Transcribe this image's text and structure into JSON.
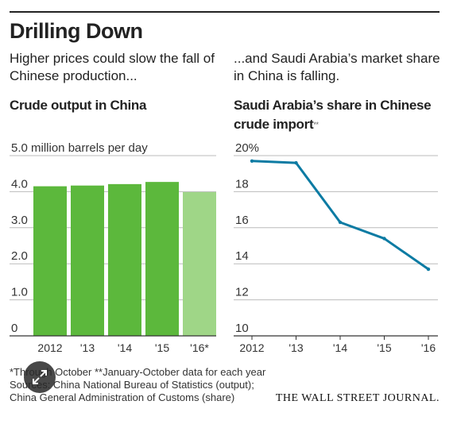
{
  "header": {
    "title": "Drilling Down",
    "subtitle_left": "Higher prices could slow the fall of Chinese production...",
    "subtitle_right": "...and Saudi Arabia’s market share in China is falling."
  },
  "chart_data": [
    {
      "type": "bar",
      "title": "Crude output in China",
      "ylabel": "million barrels per day",
      "categories": [
        "2012",
        "'13",
        "'14",
        "'15",
        "'16*"
      ],
      "values": [
        4.15,
        4.17,
        4.21,
        4.27,
        3.99
      ],
      "ylim": [
        0,
        5.0
      ],
      "yticks": [
        0,
        1.0,
        2.0,
        3.0,
        4.0,
        5.0
      ],
      "ytick_labels": [
        "0",
        "1.0",
        "2.0",
        "3.0",
        "4.0",
        "5.0 million barrels per day"
      ],
      "grid": true,
      "colors": [
        "#5cb83c",
        "#5cb83c",
        "#5cb83c",
        "#5cb83c",
        "#9fd687"
      ]
    },
    {
      "type": "line",
      "title": "Saudi Arabia’s share in Chinese crude import",
      "title_note": "**",
      "categories": [
        "2012",
        "'13",
        "'14",
        "'15",
        "'16"
      ],
      "values": [
        19.7,
        19.6,
        16.3,
        15.4,
        13.7
      ],
      "ylim": [
        10,
        20
      ],
      "yticks": [
        10,
        12,
        14,
        16,
        18,
        20
      ],
      "ytick_labels": [
        "10",
        "12",
        "14",
        "16",
        "18",
        "20%"
      ],
      "grid": true,
      "colors": [
        "#0c7ba3"
      ]
    }
  ],
  "footnotes": {
    "line1": "*Through October   **January-October data for each year",
    "line2": "Sources: China National Bureau of Statistics (output);",
    "line3": "China General Administration of Customs (share)"
  },
  "branding": {
    "logo": "THE WALL STREET JOURNAL."
  },
  "icons": {
    "expand": "expand-arrows-icon"
  }
}
